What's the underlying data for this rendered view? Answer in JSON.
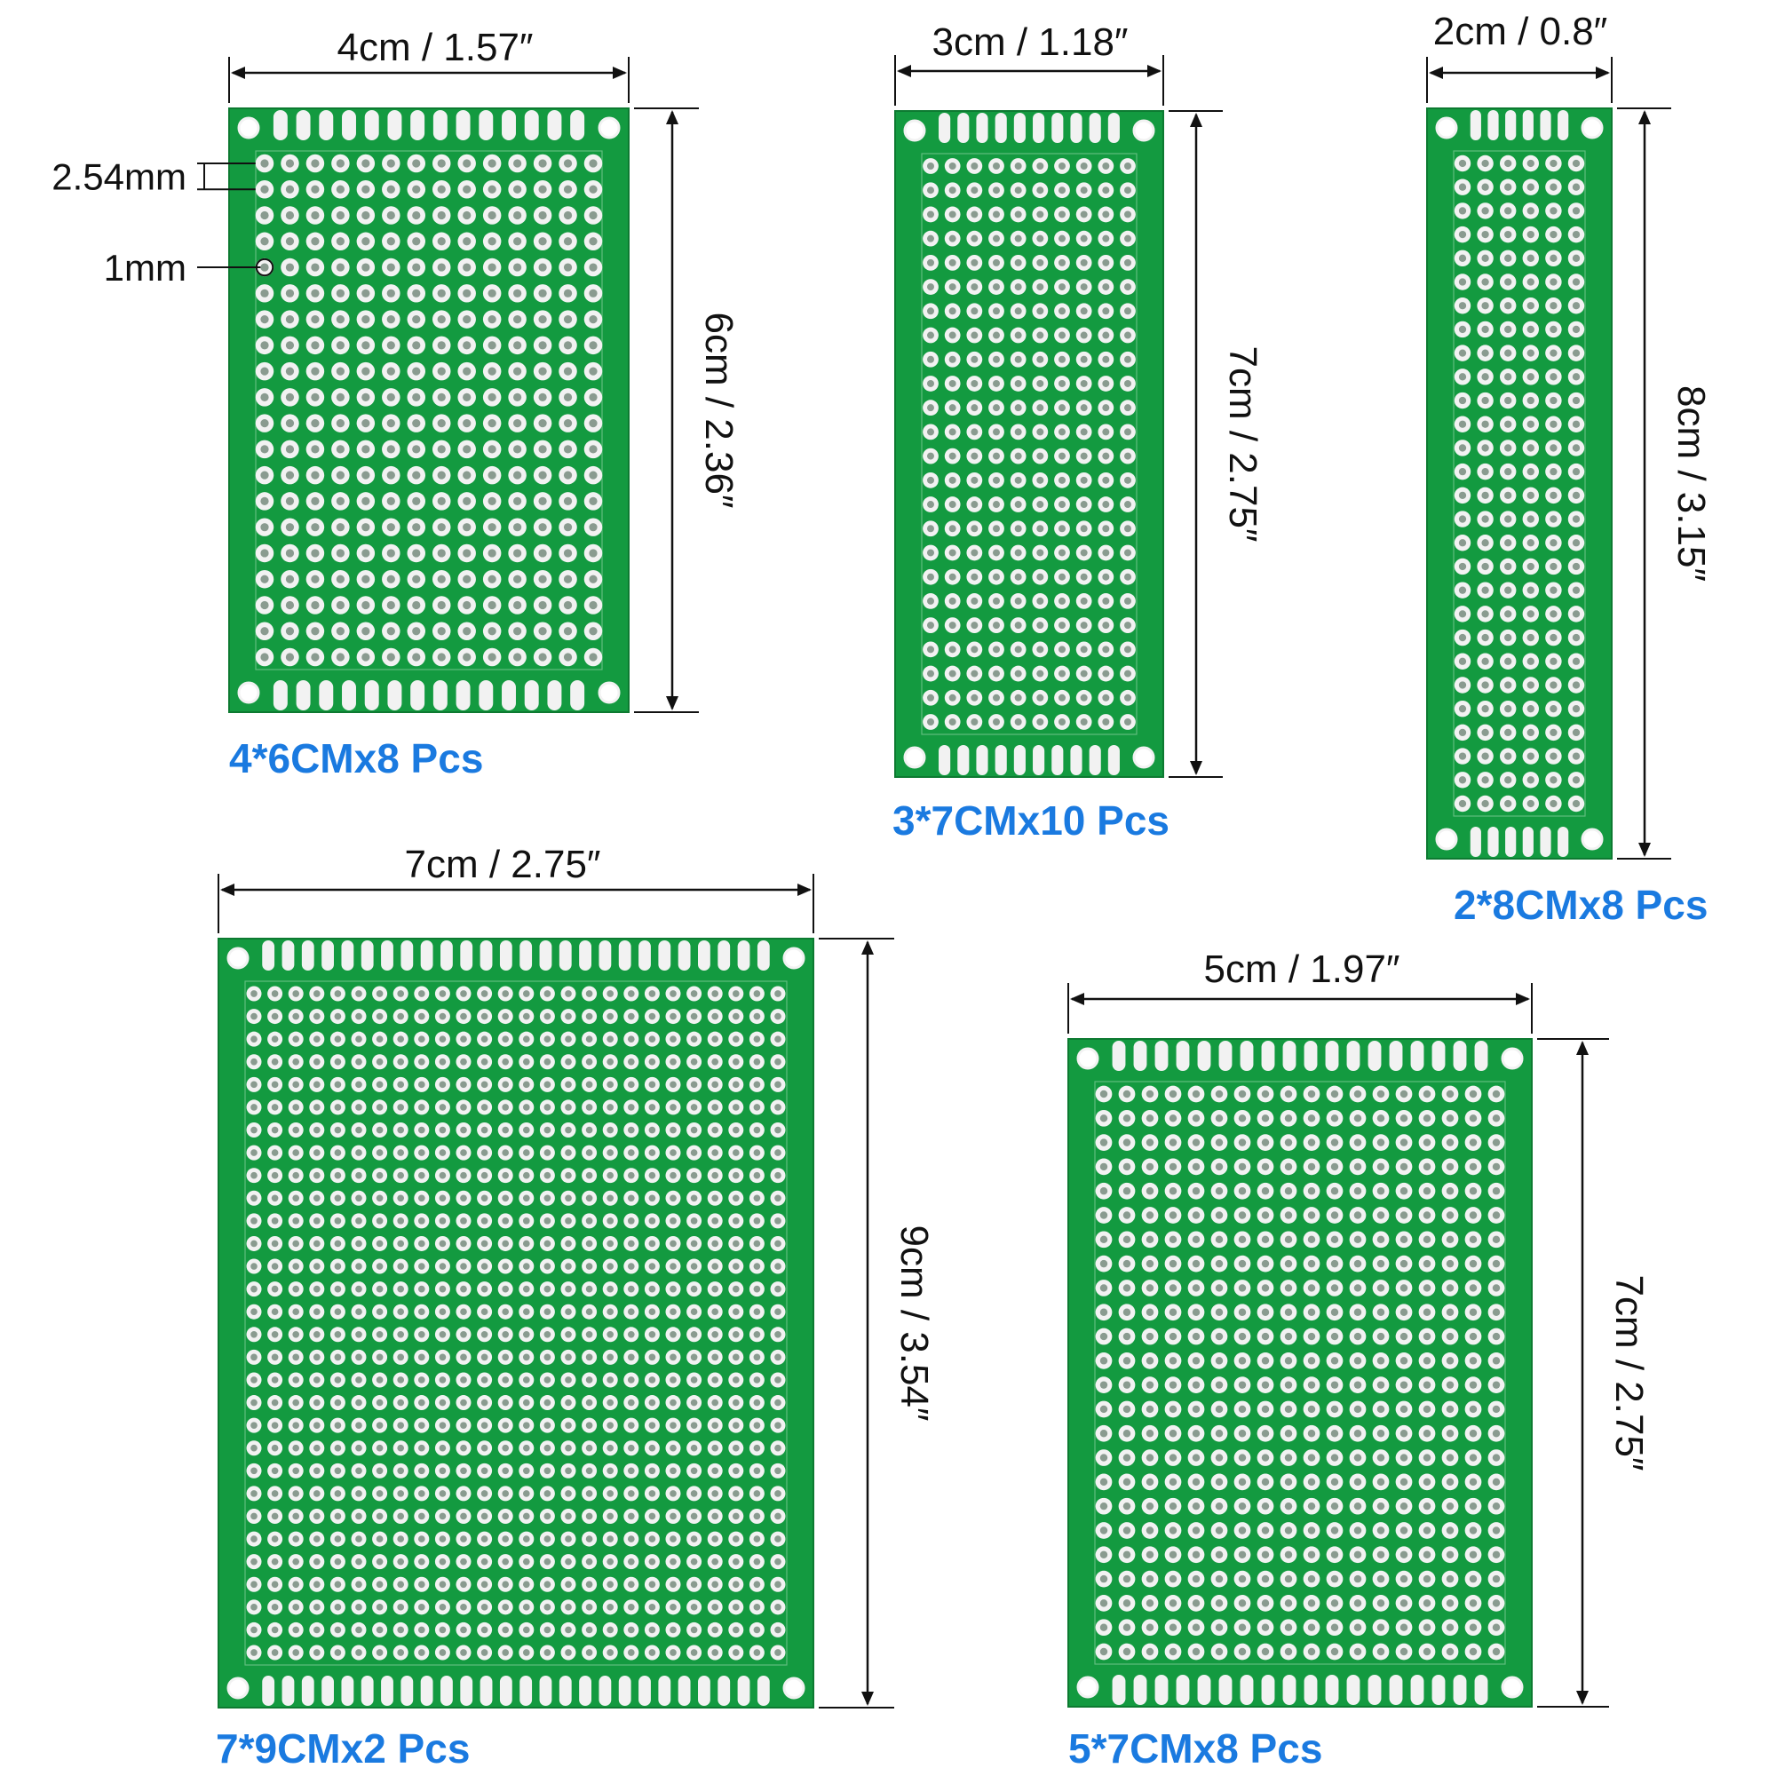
{
  "colors": {
    "board": "#139a40",
    "board_edge": "#0d7a31",
    "silkscreen": "#bfe9c9",
    "pad": "#f2f2f2",
    "hole": "#8a9b90",
    "caption": "#1a7ae0",
    "dimension_line": "#111111"
  },
  "boards": [
    {
      "name": "board-4x6",
      "width_label": "4cm / 1.57″",
      "height_label": "6cm / 2.36″",
      "caption": "4*6CMx8 Pcs",
      "pitch_label": "2.54mm",
      "hole_label": "1mm"
    },
    {
      "name": "board-3x7",
      "width_label": "3cm / 1.18″",
      "height_label": "7cm / 2.75″",
      "caption": "3*7CMx10 Pcs"
    },
    {
      "name": "board-2x8",
      "width_label": "2cm / 0.8″",
      "height_label": "8cm / 3.15″",
      "caption": "2*8CMx8 Pcs"
    },
    {
      "name": "board-7x9",
      "width_label": "7cm / 2.75″",
      "height_label": "9cm / 3.54″",
      "caption": "7*9CMx2 Pcs"
    },
    {
      "name": "board-5x7",
      "width_label": "5cm / 1.97″",
      "height_label": "7cm / 2.75″",
      "caption": "5*7CMx8 Pcs"
    }
  ]
}
